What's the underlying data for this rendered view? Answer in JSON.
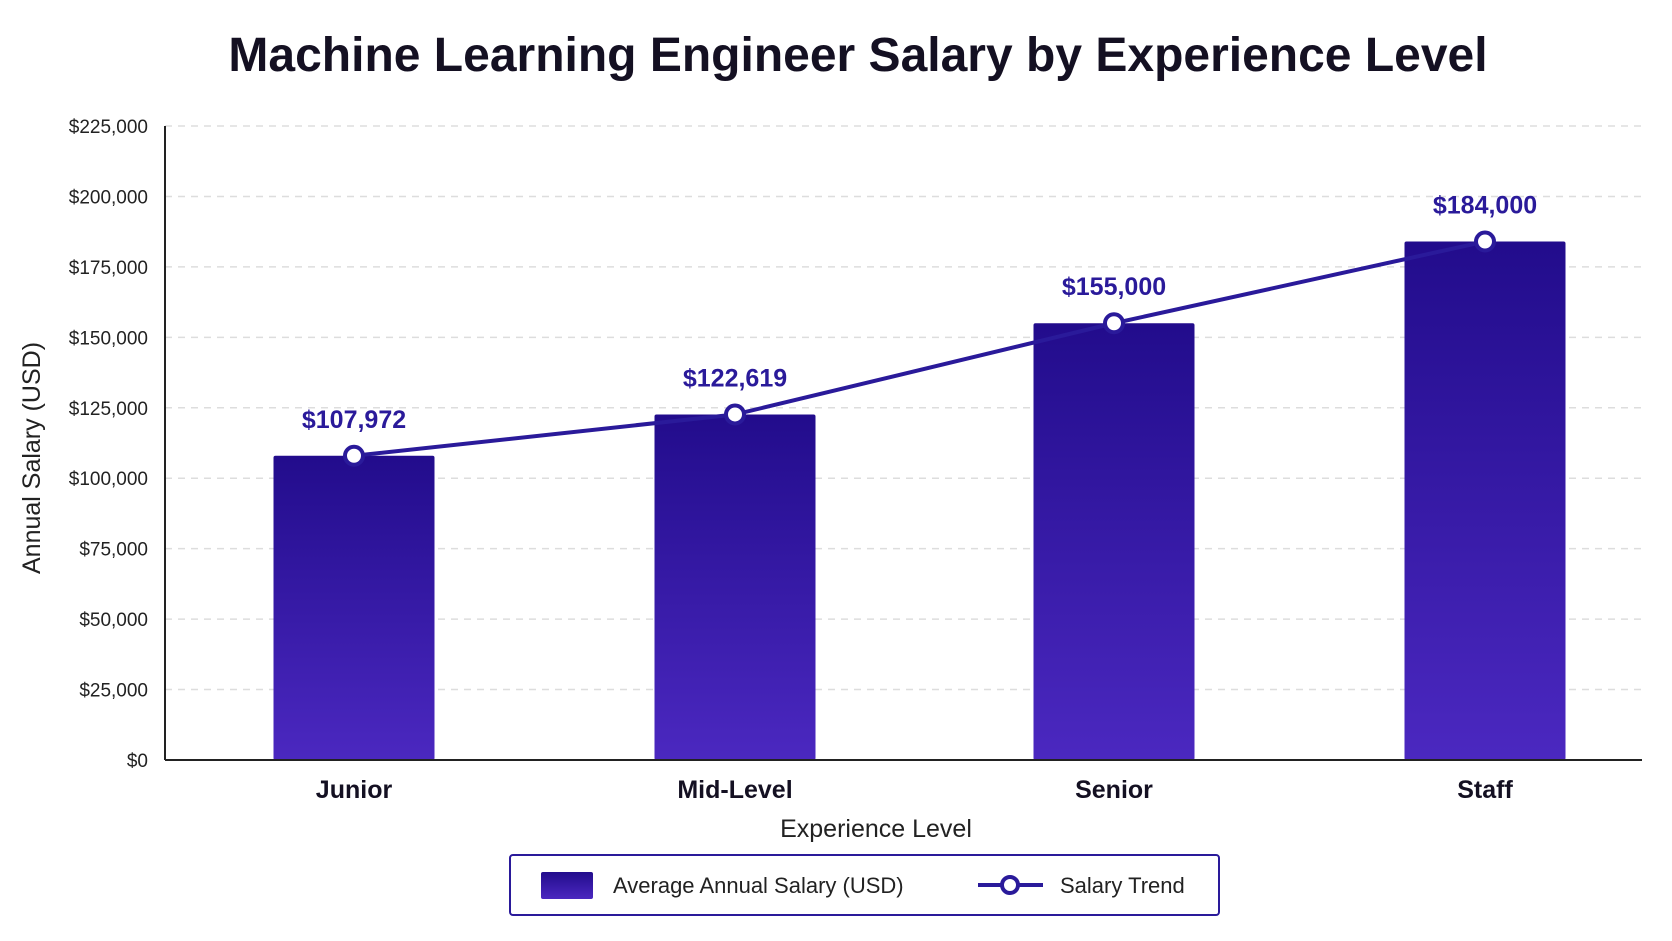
{
  "chart_data": {
    "type": "bar",
    "title": "Machine Learning Engineer Salary by Experience Level",
    "xlabel": "Experience Level",
    "ylabel": "Annual Salary (USD)",
    "categories": [
      "Junior",
      "Mid-Level",
      "Senior",
      "Staff"
    ],
    "series": [
      {
        "name": "Average Annual Salary (USD)",
        "type": "bar",
        "values": [
          107972,
          122619,
          155000,
          184000
        ]
      },
      {
        "name": "Salary Trend",
        "type": "line",
        "values": [
          107972,
          122619,
          155000,
          184000
        ]
      }
    ],
    "data_labels": [
      "$107,972",
      "$122,619",
      "$155,000",
      "$184,000"
    ],
    "ylim": [
      0,
      225000
    ],
    "yticks": [
      0,
      25000,
      50000,
      75000,
      100000,
      125000,
      150000,
      175000,
      200000,
      225000
    ],
    "ytick_labels": [
      "$0",
      "$25,000",
      "$50,000",
      "$75,000",
      "$100,000",
      "$125,000",
      "$150,000",
      "$175,000",
      "$200,000",
      "$225,000"
    ],
    "grid": true,
    "legend_position": "bottom-center",
    "colors": {
      "bar_top": "#220c8c",
      "bar_bottom": "#4b28c0",
      "line": "#2a1a9a",
      "label": "#2a1a9a",
      "grid": "#dddddd"
    }
  }
}
